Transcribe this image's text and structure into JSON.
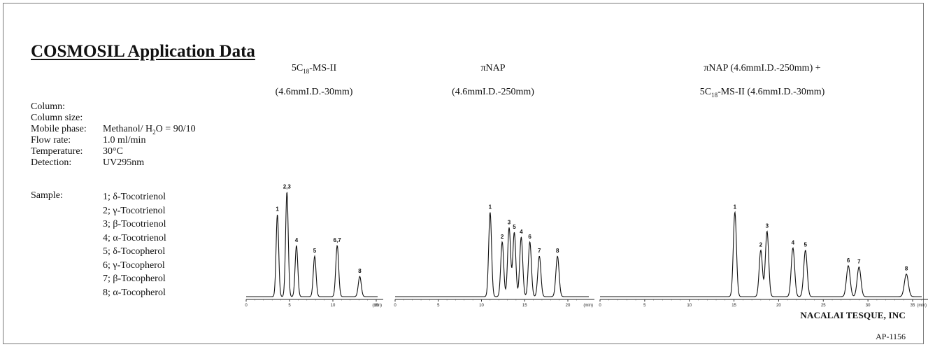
{
  "title": "COSMOSIL Application Data",
  "conditions": [
    {
      "label": "Column:",
      "value": ""
    },
    {
      "label": "Column size:",
      "value": ""
    },
    {
      "label": "Mobile phase:",
      "value": "Methanol/ H2O = 90/10"
    },
    {
      "label": "Flow rate:",
      "value": "1.0 ml/min"
    },
    {
      "label": "Temperature:",
      "value": "30°C"
    },
    {
      "label": "Detection:",
      "value": "UV295nm"
    }
  ],
  "sample_label": "Sample:",
  "samples": [
    "1; δ-Tocotrienol",
    "2; γ-Tocotrienol",
    "3; β-Tocotrienol",
    "4; α-Tocotrienol",
    "5; δ-Tocopherol",
    "6; γ-Tocopherol",
    "7; β-Tocopherol",
    "8; α-Tocopherol"
  ],
  "footer": "NACALAI TESQUE, INC",
  "code": "AP-1156",
  "chart_data": [
    {
      "type": "line",
      "title_line1": "5C18-MS-II",
      "title_line2": "(4.6mmI.D.-30mm)",
      "xlim": [
        0,
        16
      ],
      "x_ticks": [
        0,
        5,
        10,
        15
      ],
      "x_unit": "(min)",
      "peaks": [
        {
          "label": "1",
          "rt": 3.6,
          "height": 0.69
        },
        {
          "label": "2,3",
          "rt": 4.7,
          "height": 0.88
        },
        {
          "label": "4",
          "rt": 5.8,
          "height": 0.43
        },
        {
          "label": "5",
          "rt": 7.9,
          "height": 0.34
        },
        {
          "label": "6,7",
          "rt": 10.5,
          "height": 0.43
        },
        {
          "label": "8",
          "rt": 13.1,
          "height": 0.17
        }
      ]
    },
    {
      "type": "line",
      "title_line1": "πNAP",
      "title_line2": "(4.6mmI.D.-250mm)",
      "xlim": [
        0,
        21
      ],
      "x_ticks": [
        0,
        5,
        10,
        15,
        20
      ],
      "x_unit": "(min)",
      "peaks": [
        {
          "label": "1",
          "rt": 11.0,
          "height": 0.71
        },
        {
          "label": "2",
          "rt": 12.4,
          "height": 0.46
        },
        {
          "label": "3",
          "rt": 13.2,
          "height": 0.58
        },
        {
          "label": "5",
          "rt": 13.8,
          "height": 0.54
        },
        {
          "label": "4",
          "rt": 14.6,
          "height": 0.5
        },
        {
          "label": "6",
          "rt": 15.6,
          "height": 0.46
        },
        {
          "label": "7",
          "rt": 16.7,
          "height": 0.34
        },
        {
          "label": "8",
          "rt": 18.8,
          "height": 0.34
        }
      ]
    },
    {
      "type": "line",
      "title_line1": "πNAP (4.6mmI.D.-250mm) +",
      "title_line2": "5C18-MS-II (4.6mmI.D.-30mm)",
      "xlim": [
        0,
        36
      ],
      "x_ticks": [
        0,
        5,
        10,
        15,
        20,
        25,
        30,
        35
      ],
      "x_unit": "(min)",
      "peaks": [
        {
          "label": "1",
          "rt": 15.1,
          "height": 0.71
        },
        {
          "label": "2",
          "rt": 18.0,
          "height": 0.39
        },
        {
          "label": "3",
          "rt": 18.7,
          "height": 0.55
        },
        {
          "label": "4",
          "rt": 21.6,
          "height": 0.41
        },
        {
          "label": "5",
          "rt": 23.0,
          "height": 0.39
        },
        {
          "label": "6",
          "rt": 27.8,
          "height": 0.26
        },
        {
          "label": "7",
          "rt": 29.0,
          "height": 0.25
        },
        {
          "label": "8",
          "rt": 34.3,
          "height": 0.19
        }
      ]
    }
  ]
}
